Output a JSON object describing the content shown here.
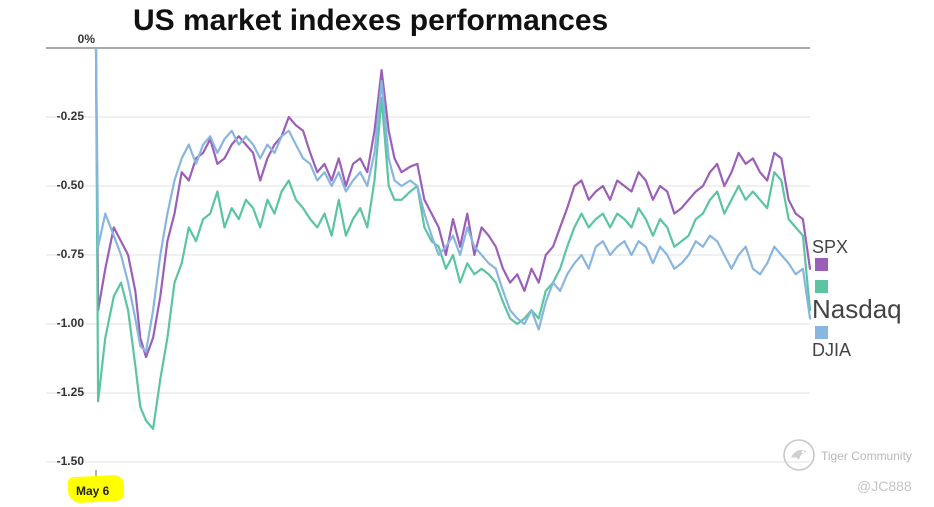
{
  "chart_data": {
    "type": "line",
    "title": "US market indexes performances",
    "xlabel": "",
    "ylabel": "",
    "x_start_label": "May 6",
    "ylim": [
      -1.5,
      0
    ],
    "y_ticks": [
      {
        "value": 0,
        "label": "0%"
      },
      {
        "value": -0.25,
        "label": "-0.25"
      },
      {
        "value": -0.5,
        "label": "-0.50"
      },
      {
        "value": -0.75,
        "label": "-0.75"
      },
      {
        "value": -1.0,
        "label": "-1.00"
      },
      {
        "value": -1.25,
        "label": "-1.25"
      },
      {
        "value": -1.5,
        "label": "-1.50"
      }
    ],
    "grid": true,
    "legend_position": "right",
    "x_range": [
      0,
      100
    ],
    "series": [
      {
        "name": "SPX",
        "color": "#9b5fb8",
        "x": [
          0,
          0.3,
          1.3,
          2.5,
          3.5,
          4.5,
          5.5,
          6.2,
          7,
          8,
          9,
          10,
          11,
          12,
          13,
          14,
          15,
          16,
          17,
          18,
          19,
          20,
          21,
          22,
          23,
          24,
          25,
          26,
          27,
          28,
          29,
          30,
          31,
          32,
          33,
          34,
          35,
          36,
          37,
          38,
          39,
          40,
          41,
          41.8,
          42.8,
          44,
          45,
          46,
          47,
          48,
          49,
          50,
          51,
          52,
          53,
          54,
          55,
          56,
          57,
          58,
          59,
          60,
          61,
          62,
          63,
          64,
          65,
          66,
          67,
          68,
          69,
          70,
          71,
          72,
          73,
          74,
          75,
          76,
          77,
          78,
          79,
          80,
          81,
          82,
          83,
          84,
          85,
          86,
          87,
          88,
          89,
          90,
          91,
          92,
          93,
          94,
          95,
          96,
          97,
          98,
          99,
          100
        ],
        "values": [
          0,
          -0.95,
          -0.8,
          -0.65,
          -0.7,
          -0.75,
          -0.88,
          -1.05,
          -1.12,
          -1.05,
          -0.9,
          -0.7,
          -0.6,
          -0.45,
          -0.48,
          -0.4,
          -0.38,
          -0.33,
          -0.42,
          -0.4,
          -0.35,
          -0.32,
          -0.35,
          -0.38,
          -0.48,
          -0.4,
          -0.35,
          -0.32,
          -0.25,
          -0.28,
          -0.3,
          -0.38,
          -0.45,
          -0.42,
          -0.48,
          -0.4,
          -0.5,
          -0.42,
          -0.4,
          -0.45,
          -0.3,
          -0.08,
          -0.3,
          -0.4,
          -0.45,
          -0.43,
          -0.42,
          -0.55,
          -0.6,
          -0.65,
          -0.75,
          -0.62,
          -0.72,
          -0.6,
          -0.75,
          -0.65,
          -0.68,
          -0.72,
          -0.8,
          -0.85,
          -0.82,
          -0.88,
          -0.8,
          -0.85,
          -0.75,
          -0.72,
          -0.65,
          -0.58,
          -0.5,
          -0.48,
          -0.55,
          -0.52,
          -0.5,
          -0.55,
          -0.48,
          -0.5,
          -0.52,
          -0.45,
          -0.48,
          -0.55,
          -0.5,
          -0.52,
          -0.6,
          -0.58,
          -0.55,
          -0.52,
          -0.5,
          -0.45,
          -0.42,
          -0.5,
          -0.45,
          -0.38,
          -0.42,
          -0.4,
          -0.45,
          -0.48,
          -0.38,
          -0.4,
          -0.55,
          -0.6,
          -0.62,
          -0.8
        ]
      },
      {
        "name": "Nasdaq",
        "color": "#5bc4a0",
        "x": [
          0,
          0.3,
          1.3,
          2.5,
          3.5,
          4.5,
          5.5,
          6.2,
          7,
          8,
          9,
          10,
          11,
          12,
          13,
          14,
          15,
          16,
          17,
          18,
          19,
          20,
          21,
          22,
          23,
          24,
          25,
          26,
          27,
          28,
          29,
          30,
          31,
          32,
          33,
          34,
          35,
          36,
          37,
          38,
          39,
          40,
          41,
          41.8,
          42.8,
          44,
          45,
          46,
          47,
          48,
          49,
          50,
          51,
          52,
          53,
          54,
          55,
          56,
          57,
          58,
          59,
          60,
          61,
          62,
          63,
          64,
          65,
          66,
          67,
          68,
          69,
          70,
          71,
          72,
          73,
          74,
          75,
          76,
          77,
          78,
          79,
          80,
          81,
          82,
          83,
          84,
          85,
          86,
          87,
          88,
          89,
          90,
          91,
          92,
          93,
          94,
          95,
          96,
          97,
          98,
          99,
          100
        ],
        "values": [
          0,
          -1.28,
          -1.05,
          -0.9,
          -0.85,
          -0.95,
          -1.15,
          -1.3,
          -1.35,
          -1.38,
          -1.2,
          -1.05,
          -0.85,
          -0.78,
          -0.65,
          -0.7,
          -0.62,
          -0.6,
          -0.52,
          -0.65,
          -0.58,
          -0.62,
          -0.55,
          -0.58,
          -0.65,
          -0.55,
          -0.6,
          -0.52,
          -0.48,
          -0.55,
          -0.58,
          -0.62,
          -0.65,
          -0.6,
          -0.68,
          -0.55,
          -0.68,
          -0.62,
          -0.58,
          -0.65,
          -0.48,
          -0.18,
          -0.5,
          -0.55,
          -0.55,
          -0.52,
          -0.5,
          -0.65,
          -0.7,
          -0.72,
          -0.8,
          -0.75,
          -0.85,
          -0.78,
          -0.82,
          -0.8,
          -0.82,
          -0.85,
          -0.92,
          -0.98,
          -1.0,
          -0.98,
          -0.95,
          -0.98,
          -0.88,
          -0.85,
          -0.8,
          -0.72,
          -0.65,
          -0.6,
          -0.65,
          -0.62,
          -0.6,
          -0.65,
          -0.6,
          -0.62,
          -0.65,
          -0.58,
          -0.62,
          -0.68,
          -0.62,
          -0.65,
          -0.72,
          -0.7,
          -0.68,
          -0.62,
          -0.6,
          -0.55,
          -0.52,
          -0.6,
          -0.55,
          -0.5,
          -0.55,
          -0.52,
          -0.55,
          -0.58,
          -0.45,
          -0.48,
          -0.62,
          -0.65,
          -0.68,
          -0.95
        ]
      },
      {
        "name": "DJIA",
        "color": "#89b6de",
        "x": [
          0,
          0.3,
          1.3,
          2.5,
          3.5,
          4.5,
          5.5,
          6.2,
          7,
          8,
          9,
          10,
          11,
          12,
          13,
          14,
          15,
          16,
          17,
          18,
          19,
          20,
          21,
          22,
          23,
          24,
          25,
          26,
          27,
          28,
          29,
          30,
          31,
          32,
          33,
          34,
          35,
          36,
          37,
          38,
          39,
          40,
          41,
          41.8,
          42.8,
          44,
          45,
          46,
          47,
          48,
          49,
          50,
          51,
          52,
          53,
          54,
          55,
          56,
          57,
          58,
          59,
          60,
          61,
          62,
          63,
          64,
          65,
          66,
          67,
          68,
          69,
          70,
          71,
          72,
          73,
          74,
          75,
          76,
          77,
          78,
          79,
          80,
          81,
          82,
          83,
          84,
          85,
          86,
          87,
          88,
          89,
          90,
          91,
          92,
          93,
          94,
          95,
          96,
          97,
          98,
          99,
          100
        ],
        "values": [
          0,
          -0.72,
          -0.6,
          -0.68,
          -0.75,
          -0.85,
          -0.98,
          -1.08,
          -1.1,
          -0.95,
          -0.75,
          -0.6,
          -0.48,
          -0.4,
          -0.35,
          -0.42,
          -0.35,
          -0.32,
          -0.38,
          -0.33,
          -0.3,
          -0.35,
          -0.32,
          -0.35,
          -0.4,
          -0.35,
          -0.38,
          -0.32,
          -0.3,
          -0.35,
          -0.4,
          -0.42,
          -0.48,
          -0.45,
          -0.5,
          -0.45,
          -0.52,
          -0.48,
          -0.45,
          -0.5,
          -0.38,
          -0.12,
          -0.4,
          -0.48,
          -0.5,
          -0.48,
          -0.5,
          -0.6,
          -0.68,
          -0.75,
          -0.72,
          -0.68,
          -0.75,
          -0.65,
          -0.72,
          -0.75,
          -0.78,
          -0.8,
          -0.88,
          -0.95,
          -0.98,
          -1.0,
          -0.95,
          -1.02,
          -0.92,
          -0.85,
          -0.88,
          -0.82,
          -0.78,
          -0.75,
          -0.8,
          -0.72,
          -0.7,
          -0.75,
          -0.72,
          -0.7,
          -0.75,
          -0.7,
          -0.72,
          -0.78,
          -0.72,
          -0.75,
          -0.8,
          -0.78,
          -0.75,
          -0.7,
          -0.72,
          -0.68,
          -0.7,
          -0.75,
          -0.8,
          -0.75,
          -0.72,
          -0.8,
          -0.82,
          -0.78,
          -0.72,
          -0.75,
          -0.78,
          -0.82,
          -0.8,
          -0.98
        ]
      }
    ],
    "legend": [
      {
        "label": "SPX",
        "color": "#9b5fb8"
      },
      {
        "label": "Nasdaq",
        "color": "#5bc4a0"
      },
      {
        "label": "DJIA",
        "color": "#89b6de"
      }
    ]
  },
  "watermark": {
    "brand": "Tiger Community",
    "handle": "@JC888",
    "logo_icon": "tiger-logo-icon"
  }
}
